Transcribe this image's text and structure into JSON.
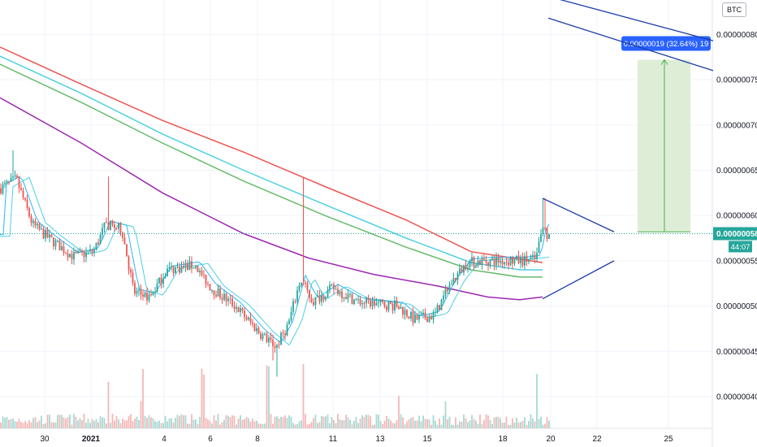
{
  "currency": "BTC",
  "price_axis": {
    "ticks": [
      "0.00000080",
      "0.00000075",
      "0.00000070",
      "0.00000065",
      "0.00000060",
      "0.00000055",
      "0.00000050",
      "0.00000045",
      "0.00000040"
    ],
    "last_price_label": "0.00000058",
    "countdown_label": "44:07",
    "colors": {
      "last_price_bg": "#26a69a",
      "countdown_bg": "#26a69a"
    }
  },
  "time_axis": {
    "labels": [
      {
        "text": "30",
        "bold": false
      },
      {
        "text": "2021",
        "bold": true
      },
      {
        "text": "4",
        "bold": false
      },
      {
        "text": "6",
        "bold": false
      },
      {
        "text": "8",
        "bold": false
      },
      {
        "text": "11",
        "bold": false
      },
      {
        "text": "13",
        "bold": false
      },
      {
        "text": "15",
        "bold": false
      },
      {
        "text": "18",
        "bold": false
      },
      {
        "text": "20",
        "bold": false
      },
      {
        "text": "22",
        "bold": false
      },
      {
        "text": "25",
        "bold": false
      }
    ]
  },
  "measure_tool": {
    "label": "0.00000019 (32.64%) 19",
    "from_price": 5.82e-07,
    "to_price": 7.72e-07,
    "colors": {
      "fill": "#d8ebcf",
      "line": "#4caf50",
      "label_bg": "#2962ff"
    }
  },
  "chart_data": {
    "type": "candlestick",
    "y_unit": "BTC",
    "ylim": [
      3.65e-07,
      8.38e-07
    ],
    "last_price": 5.8e-07,
    "moving_averages": [
      {
        "color": "#ef5350",
        "points": [
          [
            0,
            7.86e-07
          ],
          [
            100,
            7.45e-07
          ],
          [
            200,
            7.05e-07
          ],
          [
            300,
            6.7e-07
          ],
          [
            400,
            6.32e-07
          ],
          [
            500,
            5.95e-07
          ],
          [
            580,
            5.6e-07
          ],
          [
            640,
            5.52e-07
          ],
          [
            668,
            5.48e-07
          ]
        ]
      },
      {
        "color": "#4dd0e1",
        "points": [
          [
            0,
            7.76e-07
          ],
          [
            100,
            7.35e-07
          ],
          [
            200,
            6.9e-07
          ],
          [
            300,
            6.5e-07
          ],
          [
            400,
            6.12e-07
          ],
          [
            500,
            5.75e-07
          ],
          [
            580,
            5.48e-07
          ],
          [
            640,
            5.4e-07
          ],
          [
            668,
            5.4e-07
          ]
        ]
      },
      {
        "color": "#66bb6a",
        "points": [
          [
            0,
            7.67e-07
          ],
          [
            100,
            7.25e-07
          ],
          [
            200,
            6.8e-07
          ],
          [
            300,
            6.38e-07
          ],
          [
            400,
            6e-07
          ],
          [
            500,
            5.65e-07
          ],
          [
            580,
            5.4e-07
          ],
          [
            640,
            5.32e-07
          ],
          [
            668,
            5.32e-07
          ]
        ]
      },
      {
        "color": "#9c27b0",
        "points": [
          [
            0,
            7.3e-07
          ],
          [
            100,
            6.8e-07
          ],
          [
            200,
            6.25e-07
          ],
          [
            300,
            5.8e-07
          ],
          [
            380,
            5.53e-07
          ],
          [
            460,
            5.35e-07
          ],
          [
            540,
            5.22e-07
          ],
          [
            600,
            5.1e-07
          ],
          [
            640,
            5.07e-07
          ],
          [
            668,
            5.1e-07
          ]
        ]
      }
    ],
    "trend_lines": [
      {
        "color": "#1e3fa8",
        "points": [
          [
            668,
            6.19e-07
          ],
          [
            756,
            5.82e-07
          ]
        ]
      },
      {
        "color": "#1e3fa8",
        "points": [
          [
            668,
            5.08e-07
          ],
          [
            756,
            5.5e-07
          ]
        ]
      },
      {
        "color": "#1e3fa8",
        "points": [
          [
            675,
            8.42e-07
          ],
          [
            878,
            7.93e-07
          ]
        ]
      },
      {
        "color": "#1e3fa8",
        "points": [
          [
            675,
            8.18e-07
          ],
          [
            878,
            7.6e-07
          ]
        ]
      }
    ],
    "colors": {
      "up": "#26a69a",
      "down": "#ef5350",
      "grid": "#f0f3fa",
      "axis": "#e0e3eb"
    }
  }
}
